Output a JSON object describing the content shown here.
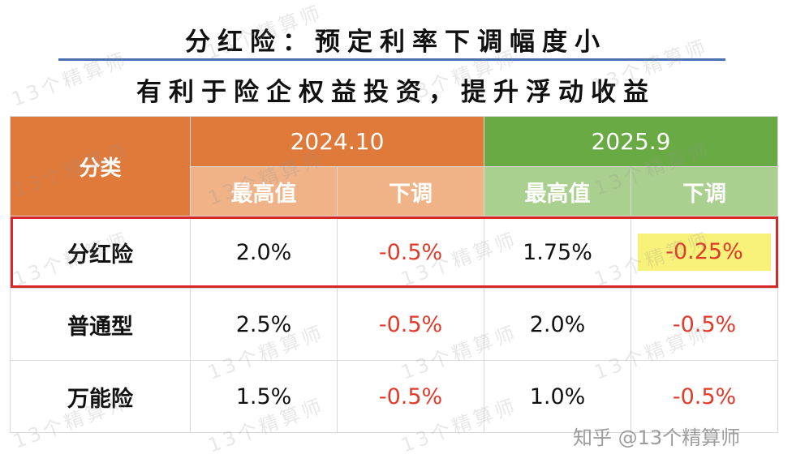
{
  "title_line1": "分红险：预定利率下调幅度小",
  "title_line2": "有利于险企权益投资，提升浮动收益",
  "table": {
    "category_header": "分类",
    "periods": [
      "2024.10",
      "2025.9"
    ],
    "sub_headers": [
      "最高值",
      "下调",
      "最高值",
      "下调"
    ],
    "rows": [
      {
        "name": "分红险",
        "values": [
          "2.0%",
          "-0.5%",
          "1.75%",
          "-0.25%"
        ]
      },
      {
        "name": "普通型",
        "values": [
          "2.5%",
          "-0.5%",
          "2.0%",
          "-0.5%"
        ]
      },
      {
        "name": "万能险",
        "values": [
          "1.5%",
          "-0.5%",
          "1.0%",
          "-0.5%"
        ]
      }
    ]
  },
  "watermark_text": "13个精算师",
  "credit": "知乎 @13个精算师"
}
